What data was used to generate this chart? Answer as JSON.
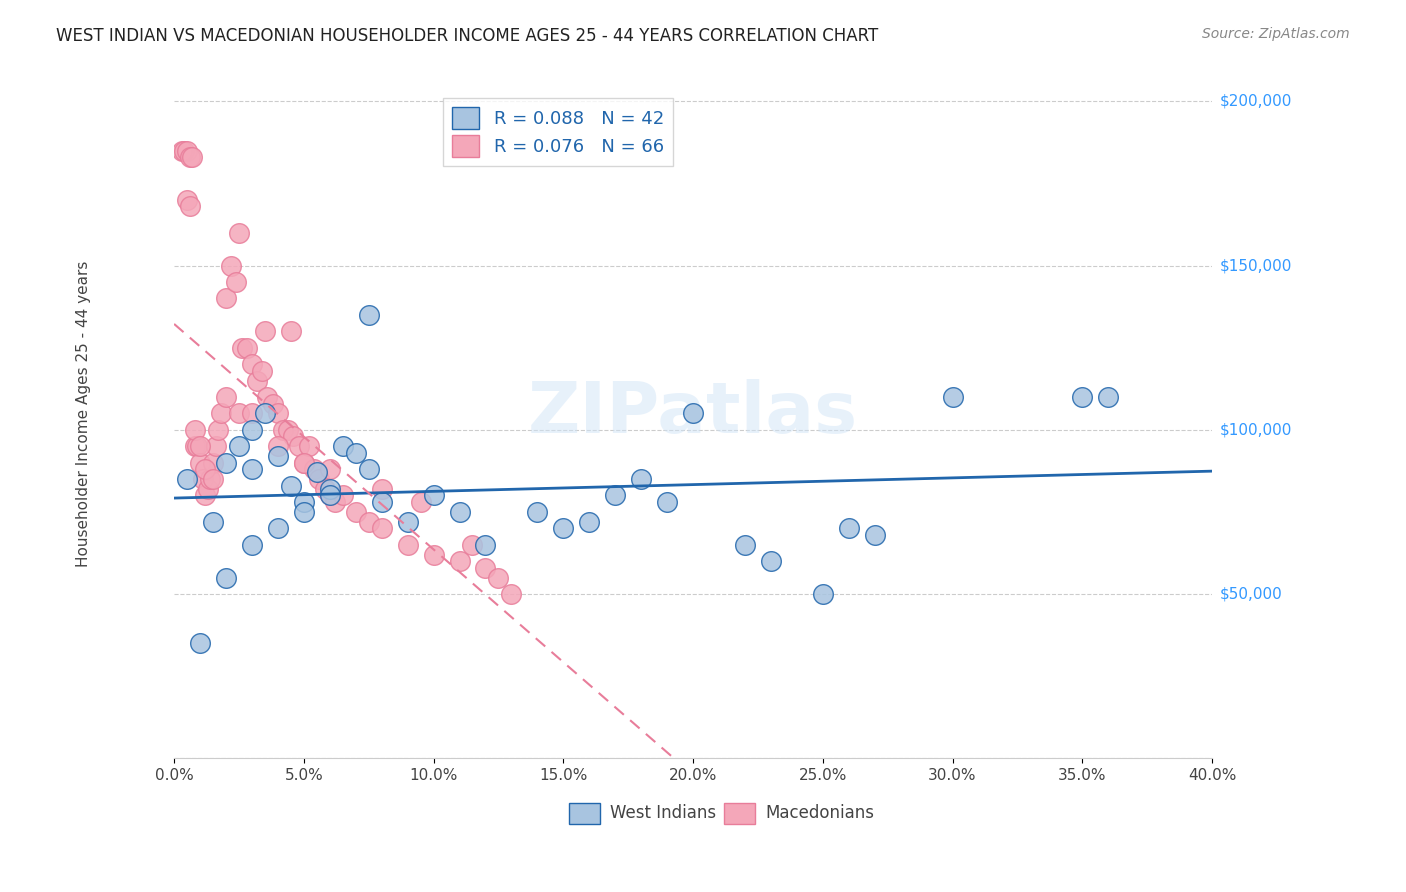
{
  "title": "WEST INDIAN VS MACEDONIAN HOUSEHOLDER INCOME AGES 25 - 44 YEARS CORRELATION CHART",
  "source": "Source: ZipAtlas.com",
  "ylabel": "Householder Income Ages 25 - 44 years",
  "xlabel_ticks": [
    "0.0%",
    "5.0%",
    "10.0%",
    "15.0%",
    "20.0%",
    "25.0%",
    "30.0%",
    "35.0%",
    "40.0%"
  ],
  "xlabel_vals": [
    0.0,
    5.0,
    10.0,
    15.0,
    20.0,
    25.0,
    30.0,
    35.0,
    40.0
  ],
  "ytick_vals": [
    0,
    50000,
    100000,
    150000,
    200000
  ],
  "ytick_labels": [
    "",
    "$50,000",
    "$100,000",
    "$150,000",
    "$200,000"
  ],
  "xmin": 0.0,
  "xmax": 40.0,
  "ymin": 0,
  "ymax": 210000,
  "legend_blue_label": "R = 0.088   N = 42",
  "legend_pink_label": "R = 0.076   N = 66",
  "blue_color": "#a8c4e0",
  "pink_color": "#f4a7b9",
  "blue_line_color": "#2166ac",
  "pink_line_color": "#e87d9a",
  "west_indians_label": "West Indians",
  "macedonians_label": "Macedonians",
  "blue_R": 0.088,
  "pink_R": 0.076,
  "blue_N": 42,
  "pink_N": 66,
  "west_indians_x": [
    0.5,
    1.5,
    2.0,
    2.5,
    3.0,
    3.5,
    3.0,
    4.0,
    4.5,
    5.0,
    5.5,
    6.0,
    6.5,
    7.0,
    7.5,
    1.0,
    2.0,
    3.0,
    4.0,
    5.0,
    6.0,
    7.5,
    8.0,
    9.0,
    10.0,
    11.0,
    12.0,
    14.0,
    15.0,
    16.0,
    17.0,
    18.0,
    19.0,
    20.0,
    22.0,
    23.0,
    25.0,
    26.0,
    27.0,
    30.0,
    35.0,
    36.0
  ],
  "west_indians_y": [
    85000,
    72000,
    90000,
    95000,
    100000,
    105000,
    88000,
    92000,
    83000,
    78000,
    87000,
    82000,
    95000,
    93000,
    88000,
    35000,
    55000,
    65000,
    70000,
    75000,
    80000,
    135000,
    78000,
    72000,
    80000,
    75000,
    65000,
    75000,
    70000,
    72000,
    80000,
    85000,
    78000,
    105000,
    65000,
    60000,
    50000,
    70000,
    68000,
    110000,
    110000,
    110000
  ],
  "macedonians_x": [
    0.3,
    0.4,
    0.5,
    0.6,
    0.7,
    0.8,
    0.9,
    1.0,
    1.1,
    1.2,
    1.3,
    1.4,
    1.5,
    1.6,
    1.7,
    1.8,
    2.0,
    2.2,
    2.4,
    2.6,
    2.8,
    3.0,
    3.2,
    3.4,
    3.6,
    3.8,
    4.0,
    4.2,
    4.4,
    4.6,
    4.8,
    5.0,
    5.2,
    5.4,
    5.6,
    5.8,
    6.0,
    6.2,
    6.5,
    7.0,
    7.5,
    8.0,
    9.0,
    10.0,
    11.0,
    12.0,
    12.5,
    13.0,
    2.5,
    3.5,
    4.5,
    0.5,
    0.6,
    0.8,
    1.0,
    1.2,
    1.5,
    2.0,
    2.5,
    3.0,
    4.0,
    5.0,
    6.0,
    8.0,
    9.5,
    11.5
  ],
  "macedonians_y": [
    185000,
    185000,
    185000,
    183000,
    183000,
    95000,
    95000,
    90000,
    85000,
    80000,
    82000,
    85000,
    90000,
    95000,
    100000,
    105000,
    140000,
    150000,
    145000,
    125000,
    125000,
    120000,
    115000,
    118000,
    110000,
    108000,
    105000,
    100000,
    100000,
    98000,
    95000,
    90000,
    95000,
    88000,
    85000,
    82000,
    80000,
    78000,
    80000,
    75000,
    72000,
    70000,
    65000,
    62000,
    60000,
    58000,
    55000,
    50000,
    160000,
    130000,
    130000,
    170000,
    168000,
    100000,
    95000,
    88000,
    85000,
    110000,
    105000,
    105000,
    95000,
    90000,
    88000,
    82000,
    78000,
    65000
  ]
}
